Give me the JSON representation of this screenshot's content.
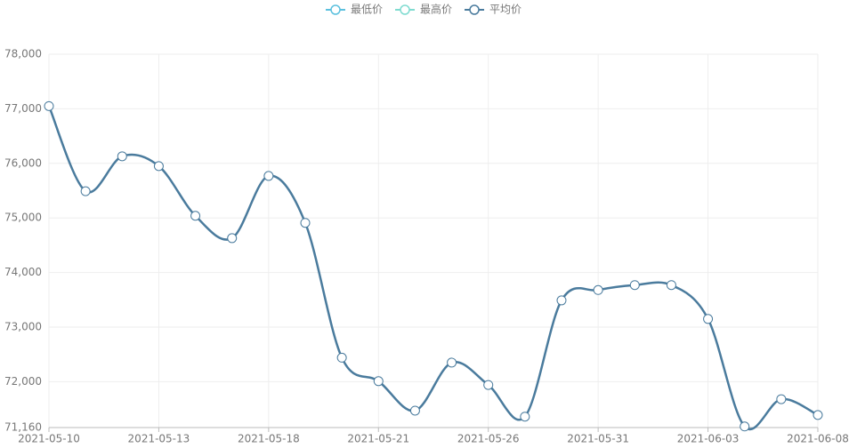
{
  "chart_data": {
    "type": "line",
    "categories": [
      "2021-05-10",
      null,
      null,
      "2021-05-13",
      null,
      null,
      "2021-05-18",
      null,
      null,
      "2021-05-21",
      null,
      null,
      "2021-05-26",
      null,
      null,
      "2021-05-31",
      null,
      null,
      "2021-06-03",
      null,
      null,
      "2021-06-08"
    ],
    "series": [
      {
        "name": "最低价",
        "color": "#5bc0de",
        "values": [
          null,
          null,
          null,
          null,
          null,
          null,
          null,
          null,
          null,
          null,
          null,
          null,
          null,
          null,
          null,
          null,
          null,
          null,
          null,
          null,
          null,
          null
        ]
      },
      {
        "name": "最高价",
        "color": "#7fdbd0",
        "values": [
          null,
          null,
          null,
          null,
          null,
          null,
          null,
          null,
          null,
          null,
          null,
          null,
          null,
          null,
          null,
          null,
          null,
          null,
          null,
          null,
          null,
          null
        ]
      },
      {
        "name": "平均价",
        "color": "#4a7b9d",
        "values": [
          77050,
          75490,
          76130,
          75950,
          75040,
          74630,
          75770,
          74910,
          72440,
          72010,
          71470,
          72350,
          71940,
          71360,
          73490,
          73680,
          73770,
          73770,
          73150,
          71180,
          71680,
          71390
        ]
      }
    ],
    "ylim": [
      71160,
      78000
    ],
    "yticks": [
      {
        "value": 71160,
        "label": "71,160"
      },
      {
        "value": 72000,
        "label": "72,000"
      },
      {
        "value": 73000,
        "label": "73,000"
      },
      {
        "value": 74000,
        "label": "74,000"
      },
      {
        "value": 75000,
        "label": "75,000"
      },
      {
        "value": 76000,
        "label": "76,000"
      },
      {
        "value": 77000,
        "label": "77,000"
      },
      {
        "value": 78000,
        "label": "78,000"
      }
    ],
    "grid": true,
    "smooth": true
  }
}
